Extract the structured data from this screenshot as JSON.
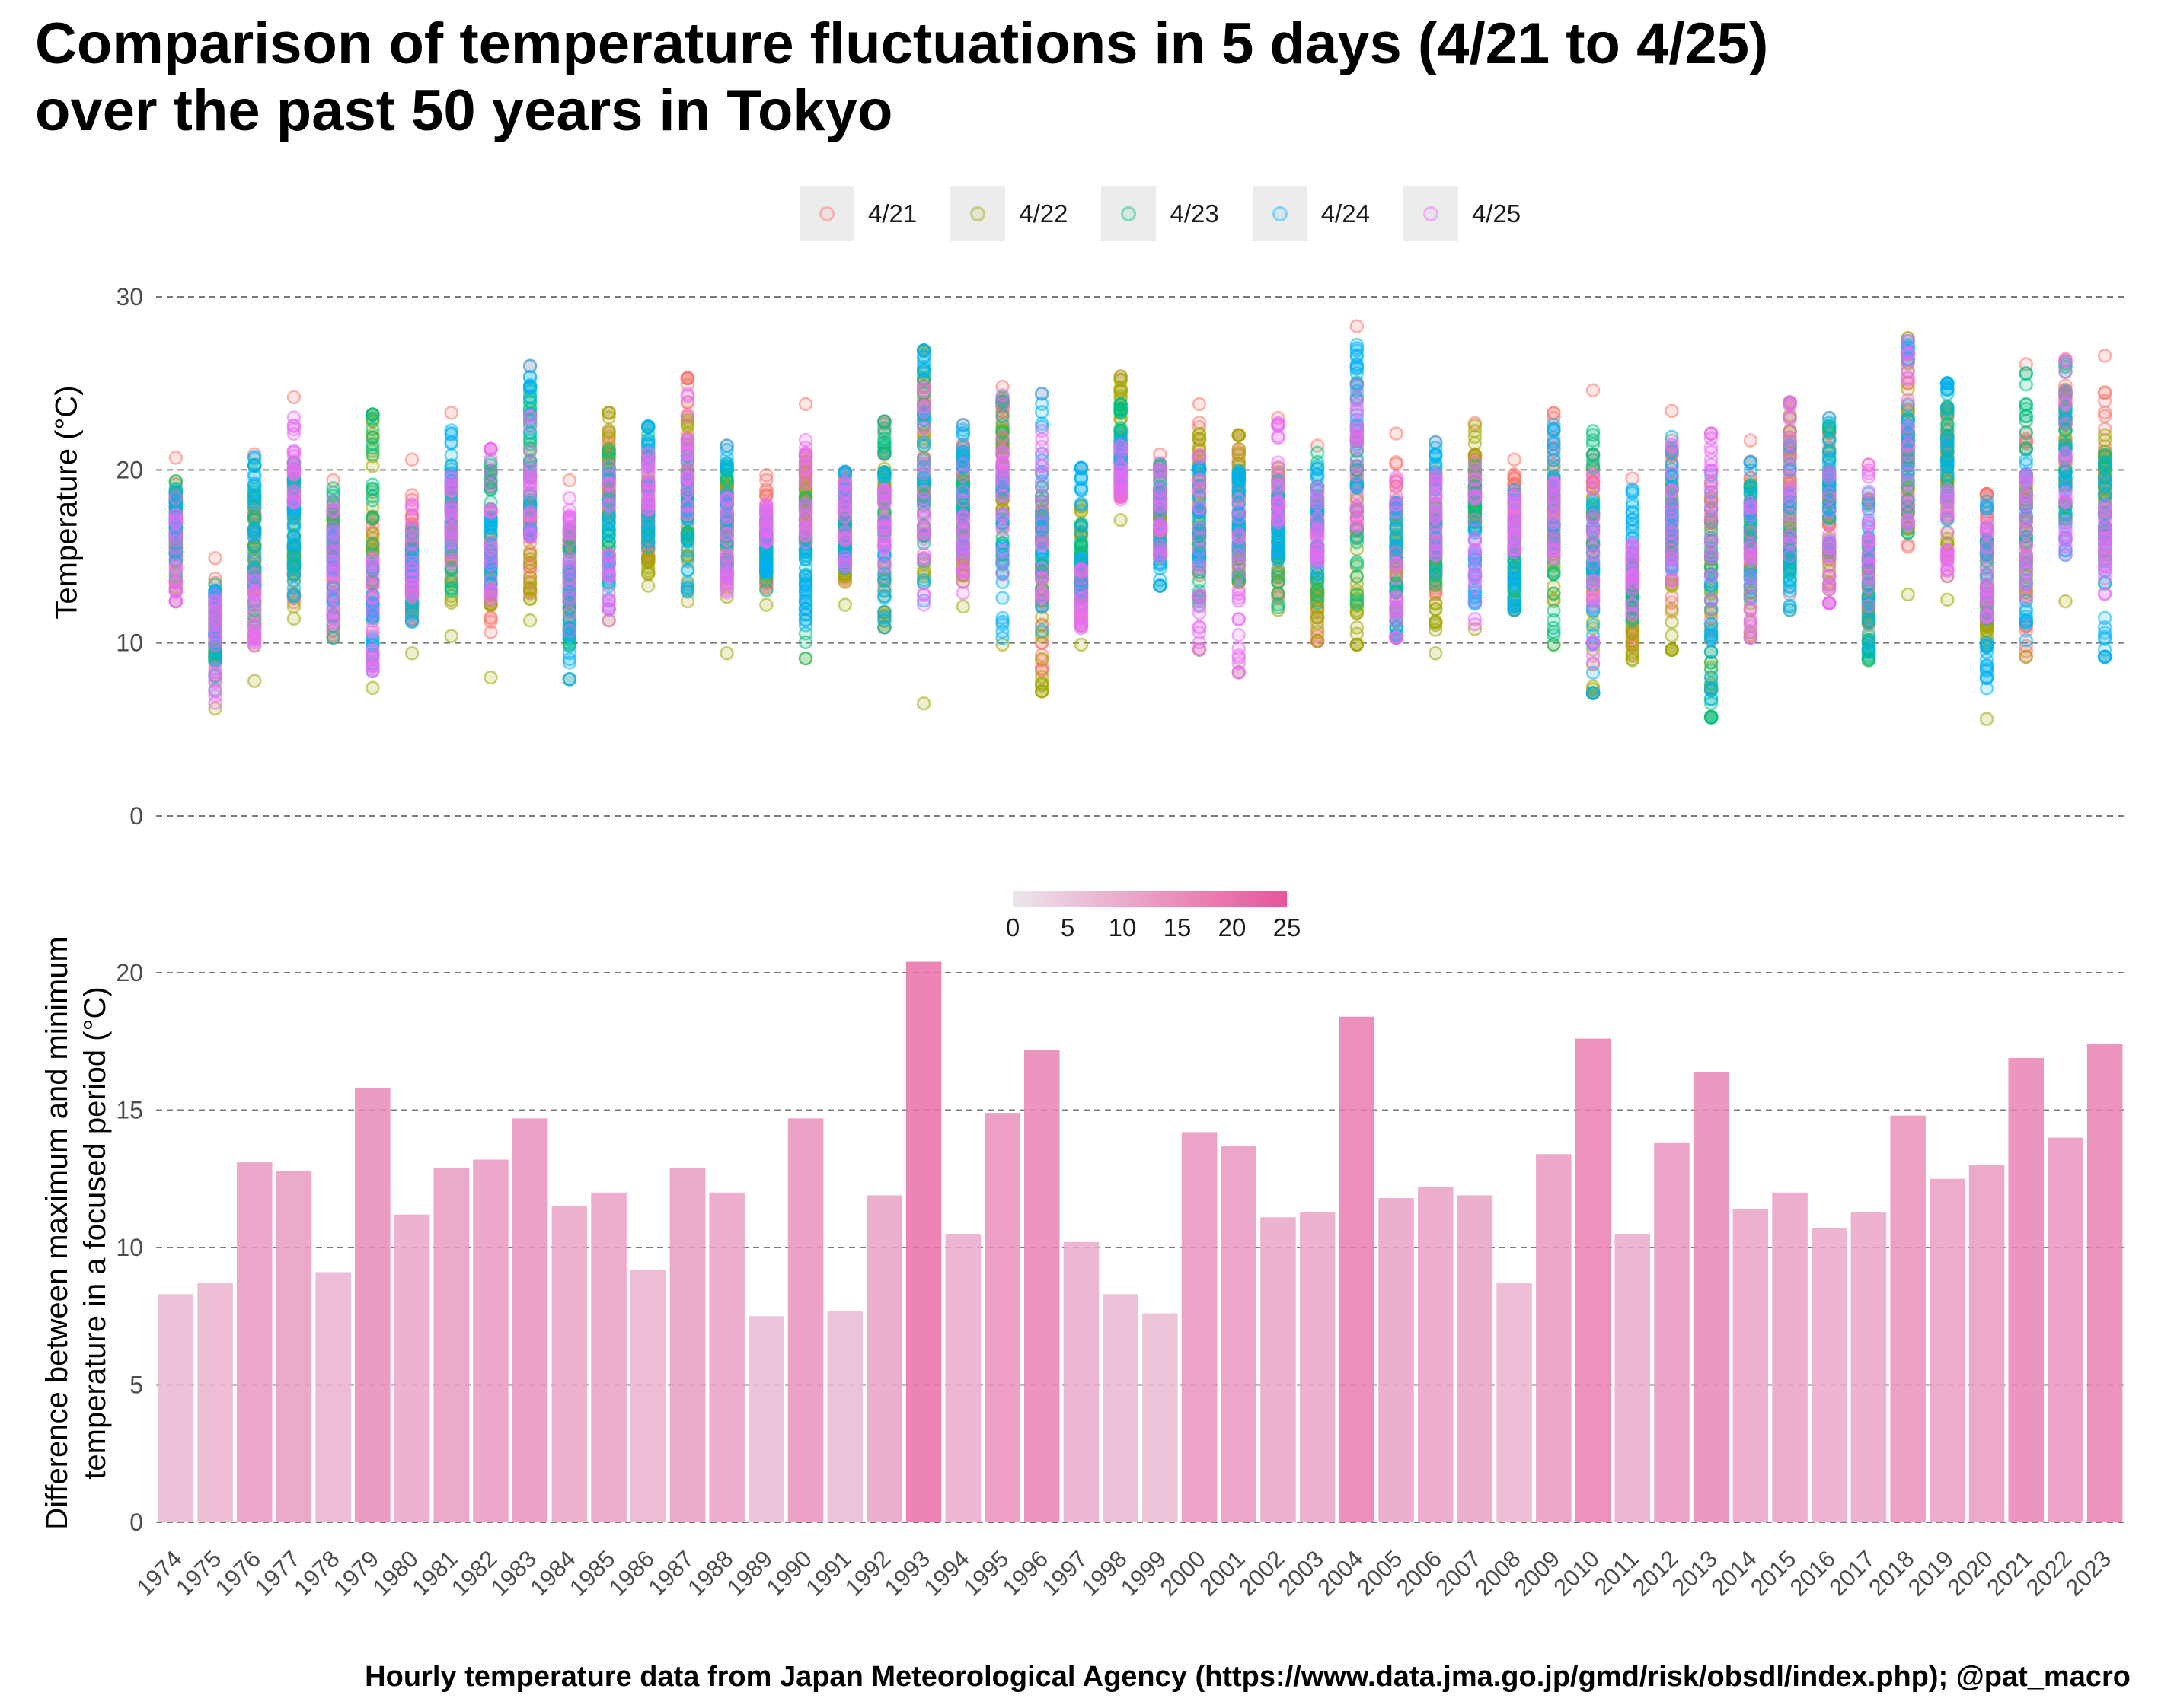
{
  "title_lines": [
    "Comparison of temperature fluctuations in 5 days (4/21 to 4/25)",
    "over the past 50 years in Tokyo"
  ],
  "caption": "Hourly temperature data from Japan Meteorological Agency (https://www.data.jma.go.jp/gmd/risk/obsdl/index.php); @pat_macro",
  "legend": [
    {
      "label": "4/21",
      "color": "#F8766D"
    },
    {
      "label": "4/22",
      "color": "#A3A500"
    },
    {
      "label": "4/23",
      "color": "#00BF7D"
    },
    {
      "label": "4/24",
      "color": "#00B0F6"
    },
    {
      "label": "4/25",
      "color": "#E76BF3"
    }
  ],
  "colorbar": {
    "ticks": [
      "0",
      "5",
      "10",
      "15",
      "20",
      "25"
    ],
    "low_color": "#ebe6ec",
    "high_color": "#e8549a"
  },
  "chart_data": [
    {
      "type": "scatter",
      "ylabel": "Temperature (°C)",
      "xlabel": "",
      "ylim": [
        0,
        30
      ],
      "yticks": [
        0,
        10,
        20,
        30
      ],
      "grid": "horizontal dashed",
      "legend_placement": "top",
      "series_by_day": [
        "4/21",
        "4/22",
        "4/23",
        "4/24",
        "4/25"
      ],
      "yearly_ranges": [
        {
          "year": "1974",
          "min": 12.4,
          "max": 20.7
        },
        {
          "year": "1975",
          "min": 6.2,
          "max": 14.9
        },
        {
          "year": "1976",
          "min": 7.8,
          "max": 20.9
        },
        {
          "year": "1977",
          "min": 11.4,
          "max": 24.2
        },
        {
          "year": "1978",
          "min": 10.3,
          "max": 19.4
        },
        {
          "year": "1979",
          "min": 7.4,
          "max": 23.2
        },
        {
          "year": "1980",
          "min": 9.4,
          "max": 20.6
        },
        {
          "year": "1981",
          "min": 10.4,
          "max": 23.3
        },
        {
          "year": "1982",
          "min": 8.0,
          "max": 21.2
        },
        {
          "year": "1983",
          "min": 11.3,
          "max": 26.0
        },
        {
          "year": "1984",
          "min": 7.9,
          "max": 19.4
        },
        {
          "year": "1985",
          "min": 11.3,
          "max": 23.3
        },
        {
          "year": "1986",
          "min": 13.3,
          "max": 22.5
        },
        {
          "year": "1987",
          "min": 12.4,
          "max": 25.3
        },
        {
          "year": "1988",
          "min": 9.4,
          "max": 21.4
        },
        {
          "year": "1989",
          "min": 12.2,
          "max": 19.7
        },
        {
          "year": "1990",
          "min": 9.1,
          "max": 23.8
        },
        {
          "year": "1991",
          "min": 12.2,
          "max": 19.9
        },
        {
          "year": "1992",
          "min": 10.9,
          "max": 22.8
        },
        {
          "year": "1993",
          "min": 6.5,
          "max": 26.9
        },
        {
          "year": "1994",
          "min": 12.1,
          "max": 22.6
        },
        {
          "year": "1995",
          "min": 9.9,
          "max": 24.8
        },
        {
          "year": "1996",
          "min": 7.2,
          "max": 24.4
        },
        {
          "year": "1997",
          "min": 9.9,
          "max": 20.1
        },
        {
          "year": "1998",
          "min": 17.1,
          "max": 25.4
        },
        {
          "year": "1999",
          "min": 13.3,
          "max": 20.9
        },
        {
          "year": "2000",
          "min": 9.6,
          "max": 23.8
        },
        {
          "year": "2001",
          "min": 8.3,
          "max": 22.0
        },
        {
          "year": "2002",
          "min": 11.9,
          "max": 23.0
        },
        {
          "year": "2003",
          "min": 10.1,
          "max": 21.4
        },
        {
          "year": "2004",
          "min": 9.9,
          "max": 28.3
        },
        {
          "year": "2005",
          "min": 10.3,
          "max": 22.1
        },
        {
          "year": "2006",
          "min": 9.4,
          "max": 21.6
        },
        {
          "year": "2007",
          "min": 10.8,
          "max": 22.7
        },
        {
          "year": "2008",
          "min": 11.9,
          "max": 20.6
        },
        {
          "year": "2009",
          "min": 9.9,
          "max": 23.3
        },
        {
          "year": "2010",
          "min": 7.1,
          "max": 24.6
        },
        {
          "year": "2011",
          "min": 9.0,
          "max": 19.5
        },
        {
          "year": "2012",
          "min": 9.6,
          "max": 23.4
        },
        {
          "year": "2013",
          "min": 5.7,
          "max": 22.1
        },
        {
          "year": "2014",
          "min": 10.3,
          "max": 21.7
        },
        {
          "year": "2015",
          "min": 11.9,
          "max": 23.9
        },
        {
          "year": "2016",
          "min": 12.3,
          "max": 23.0
        },
        {
          "year": "2017",
          "min": 9.0,
          "max": 20.3
        },
        {
          "year": "2018",
          "min": 12.8,
          "max": 27.6
        },
        {
          "year": "2019",
          "min": 12.5,
          "max": 25.0
        },
        {
          "year": "2020",
          "min": 5.6,
          "max": 18.6
        },
        {
          "year": "2021",
          "min": 9.2,
          "max": 26.1
        },
        {
          "year": "2022",
          "min": 12.4,
          "max": 26.4
        },
        {
          "year": "2023",
          "min": 9.2,
          "max": 26.6
        }
      ]
    },
    {
      "type": "bar",
      "ylabel_lines": [
        "Difference between maximum and minimum",
        "temperature in a focused period (°C)"
      ],
      "xlabel": "",
      "ylim": [
        0,
        20
      ],
      "yticks": [
        0,
        5,
        10,
        15,
        20
      ],
      "grid": "horizontal dashed",
      "fill": "gradient by value (colorbar 0–25)",
      "categories": [
        "1974",
        "1975",
        "1976",
        "1977",
        "1978",
        "1979",
        "1980",
        "1981",
        "1982",
        "1983",
        "1984",
        "1985",
        "1986",
        "1987",
        "1988",
        "1989",
        "1990",
        "1991",
        "1992",
        "1993",
        "1994",
        "1995",
        "1996",
        "1997",
        "1998",
        "1999",
        "2000",
        "2001",
        "2002",
        "2003",
        "2004",
        "2005",
        "2006",
        "2007",
        "2008",
        "2009",
        "2010",
        "2011",
        "2012",
        "2013",
        "2014",
        "2015",
        "2016",
        "2017",
        "2018",
        "2019",
        "2020",
        "2021",
        "2022",
        "2023"
      ],
      "values": [
        8.3,
        8.7,
        13.1,
        12.8,
        9.1,
        15.8,
        11.2,
        12.9,
        13.2,
        14.7,
        11.5,
        12.0,
        9.2,
        12.9,
        12.0,
        7.5,
        14.7,
        7.7,
        11.9,
        20.4,
        10.5,
        14.9,
        17.2,
        10.2,
        8.3,
        7.6,
        14.2,
        13.7,
        11.1,
        11.3,
        18.4,
        11.8,
        12.2,
        11.9,
        8.7,
        13.4,
        17.6,
        10.5,
        13.8,
        16.4,
        11.4,
        12.0,
        10.7,
        11.3,
        14.8,
        12.5,
        13.0,
        16.9,
        14.0,
        17.4
      ]
    }
  ]
}
